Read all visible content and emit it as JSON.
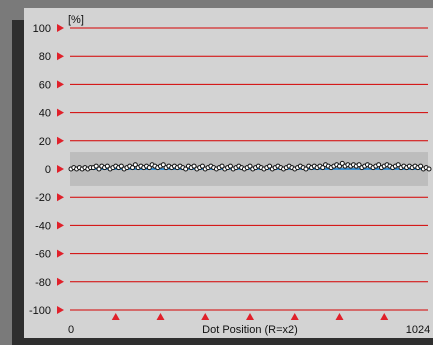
{
  "chart_data": {
    "type": "scatter",
    "y_unit_label": "[%]",
    "xlabel": "Dot Position (R=x2)",
    "x_tick_labels": [
      "0",
      "1024"
    ],
    "xlim": [
      0,
      1024
    ],
    "ylim": [
      -100,
      100
    ],
    "y_ticks": [
      100,
      80,
      60,
      40,
      20,
      0,
      -20,
      -40,
      -60,
      -80,
      -100
    ],
    "x_markers": [
      128,
      256,
      384,
      512,
      640,
      768,
      896
    ],
    "band": [
      -12,
      12
    ],
    "grid": true,
    "colors": {
      "gridline": "#d40000",
      "marker": "#e0202a",
      "band": "#bdbdbd",
      "trend": "#3a8fd0",
      "point_fill": "#ffffff",
      "point_stroke": "#111111"
    },
    "series": [
      {
        "trend": [
          [
            0,
            0
          ],
          [
            1024,
            0
          ]
        ],
        "points": [
          [
            0,
            0
          ],
          [
            8,
            1
          ],
          [
            16,
            0
          ],
          [
            24,
            1
          ],
          [
            32,
            0
          ],
          [
            40,
            1
          ],
          [
            48,
            0
          ],
          [
            56,
            1
          ],
          [
            64,
            1
          ],
          [
            72,
            2
          ],
          [
            80,
            0
          ],
          [
            88,
            2
          ],
          [
            96,
            1
          ],
          [
            104,
            2
          ],
          [
            112,
            0
          ],
          [
            120,
            1
          ],
          [
            128,
            2
          ],
          [
            136,
            1
          ],
          [
            144,
            2
          ],
          [
            152,
            0
          ],
          [
            160,
            1
          ],
          [
            168,
            2
          ],
          [
            176,
            1
          ],
          [
            184,
            3
          ],
          [
            192,
            1
          ],
          [
            200,
            2
          ],
          [
            208,
            1
          ],
          [
            216,
            2
          ],
          [
            224,
            1
          ],
          [
            232,
            3
          ],
          [
            240,
            2
          ],
          [
            248,
            1
          ],
          [
            256,
            2
          ],
          [
            264,
            3
          ],
          [
            272,
            1
          ],
          [
            280,
            2
          ],
          [
            288,
            1
          ],
          [
            296,
            2
          ],
          [
            304,
            1
          ],
          [
            312,
            2
          ],
          [
            320,
            1
          ],
          [
            328,
            0
          ],
          [
            336,
            2
          ],
          [
            344,
            1
          ],
          [
            352,
            2
          ],
          [
            360,
            0
          ],
          [
            368,
            1
          ],
          [
            376,
            2
          ],
          [
            384,
            0
          ],
          [
            392,
            1
          ],
          [
            400,
            2
          ],
          [
            408,
            1
          ],
          [
            416,
            0
          ],
          [
            424,
            1
          ],
          [
            432,
            2
          ],
          [
            440,
            0
          ],
          [
            448,
            1
          ],
          [
            456,
            2
          ],
          [
            464,
            0
          ],
          [
            472,
            1
          ],
          [
            480,
            2
          ],
          [
            488,
            1
          ],
          [
            496,
            0
          ],
          [
            504,
            1
          ],
          [
            512,
            2
          ],
          [
            520,
            0
          ],
          [
            528,
            1
          ],
          [
            536,
            2
          ],
          [
            544,
            1
          ],
          [
            552,
            0
          ],
          [
            560,
            1
          ],
          [
            568,
            2
          ],
          [
            576,
            0
          ],
          [
            584,
            1
          ],
          [
            592,
            2
          ],
          [
            600,
            1
          ],
          [
            608,
            0
          ],
          [
            616,
            1
          ],
          [
            624,
            2
          ],
          [
            632,
            1
          ],
          [
            640,
            0
          ],
          [
            648,
            1
          ],
          [
            656,
            2
          ],
          [
            664,
            1
          ],
          [
            672,
            0
          ],
          [
            680,
            2
          ],
          [
            688,
            1
          ],
          [
            696,
            2
          ],
          [
            704,
            1
          ],
          [
            712,
            2
          ],
          [
            720,
            1
          ],
          [
            728,
            3
          ],
          [
            736,
            2
          ],
          [
            744,
            1
          ],
          [
            752,
            2
          ],
          [
            760,
            3
          ],
          [
            768,
            2
          ],
          [
            776,
            4
          ],
          [
            784,
            2
          ],
          [
            792,
            3
          ],
          [
            800,
            2
          ],
          [
            808,
            3
          ],
          [
            816,
            2
          ],
          [
            824,
            3
          ],
          [
            832,
            1
          ],
          [
            840,
            2
          ],
          [
            848,
            3
          ],
          [
            856,
            2
          ],
          [
            864,
            1
          ],
          [
            872,
            2
          ],
          [
            880,
            3
          ],
          [
            888,
            1
          ],
          [
            896,
            2
          ],
          [
            904,
            3
          ],
          [
            912,
            2
          ],
          [
            920,
            1
          ],
          [
            928,
            2
          ],
          [
            936,
            3
          ],
          [
            944,
            1
          ],
          [
            952,
            2
          ],
          [
            960,
            1
          ],
          [
            968,
            2
          ],
          [
            976,
            1
          ],
          [
            984,
            2
          ],
          [
            992,
            1
          ],
          [
            1000,
            2
          ],
          [
            1008,
            0
          ],
          [
            1016,
            1
          ],
          [
            1024,
            0
          ]
        ]
      }
    ]
  }
}
